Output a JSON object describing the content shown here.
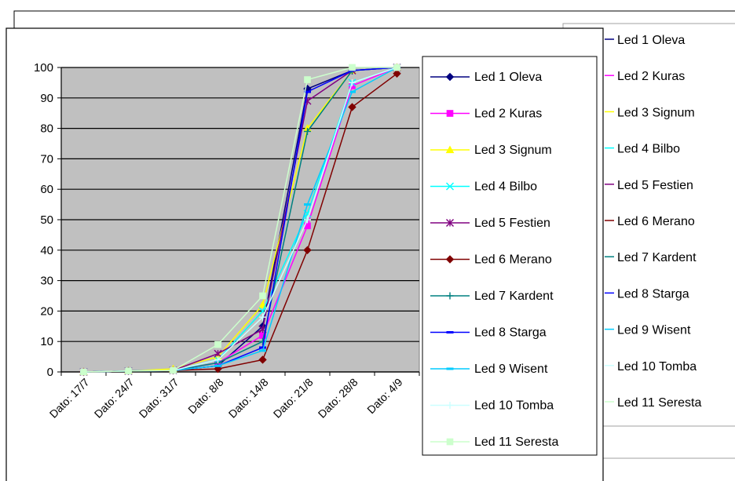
{
  "chart_data": {
    "type": "line",
    "title": "",
    "xlabel": "",
    "ylabel": "",
    "ylim": [
      0,
      100
    ],
    "yticks": [
      0,
      10,
      20,
      30,
      40,
      50,
      60,
      70,
      80,
      90,
      100
    ],
    "grid": "horizontal",
    "legend_position": "right",
    "plot_background": "#c0c0c0",
    "categories": [
      "Dato: 17/7",
      "Dato: 24/7",
      "Dato: 31/7",
      "Dato: 8/8",
      "Dato: 14/8",
      "Dato: 21/8",
      "Dato: 28/8",
      "Dato: 4/9"
    ],
    "series": [
      {
        "name": "Led 1 Oleva",
        "color": "#000080",
        "marker": "diamond",
        "values": [
          0,
          0.3,
          0.5,
          2,
          15,
          93,
          99,
          100
        ]
      },
      {
        "name": "Led 2 Kuras",
        "color": "#ff00ff",
        "marker": "square",
        "values": [
          0,
          0.3,
          0.5,
          3,
          12,
          48,
          94,
          100
        ]
      },
      {
        "name": "Led 3 Signum",
        "color": "#ffff00",
        "marker": "triangle",
        "values": [
          0,
          0.3,
          1,
          5,
          22,
          80,
          99,
          100
        ]
      },
      {
        "name": "Led 4 Bilbo",
        "color": "#00ffff",
        "marker": "x",
        "values": [
          0,
          0.3,
          0.5,
          4,
          20,
          52,
          95,
          100
        ]
      },
      {
        "name": "Led 5 Festien",
        "color": "#800080",
        "marker": "star",
        "values": [
          0,
          0.3,
          0.5,
          6,
          14,
          89,
          99,
          100
        ]
      },
      {
        "name": "Led 6 Merano",
        "color": "#800000",
        "marker": "diamond",
        "values": [
          0,
          0.3,
          0.5,
          1,
          4,
          40,
          87,
          98
        ]
      },
      {
        "name": "Led 7 Kardent",
        "color": "#008080",
        "marker": "plus",
        "values": [
          0,
          0.3,
          0.5,
          3,
          10,
          79,
          99,
          100
        ]
      },
      {
        "name": "Led 8 Starga",
        "color": "#0000ff",
        "marker": "dash",
        "values": [
          0,
          0.3,
          0.5,
          2,
          8,
          92,
          99,
          100
        ]
      },
      {
        "name": "Led 9 Wisent",
        "color": "#00ccff",
        "marker": "dash",
        "values": [
          0,
          0.3,
          0.5,
          2,
          7,
          55,
          92,
          100
        ]
      },
      {
        "name": "Led 10 Tomba",
        "color": "#ccffff",
        "marker": "plus",
        "values": [
          0,
          0.3,
          0.5,
          4,
          18,
          50,
          95,
          100
        ]
      },
      {
        "name": "Led 11 Seresta",
        "color": "#ccffcc",
        "marker": "square",
        "values": [
          0,
          0.3,
          0.5,
          9,
          25,
          96,
          100,
          100
        ]
      }
    ]
  }
}
